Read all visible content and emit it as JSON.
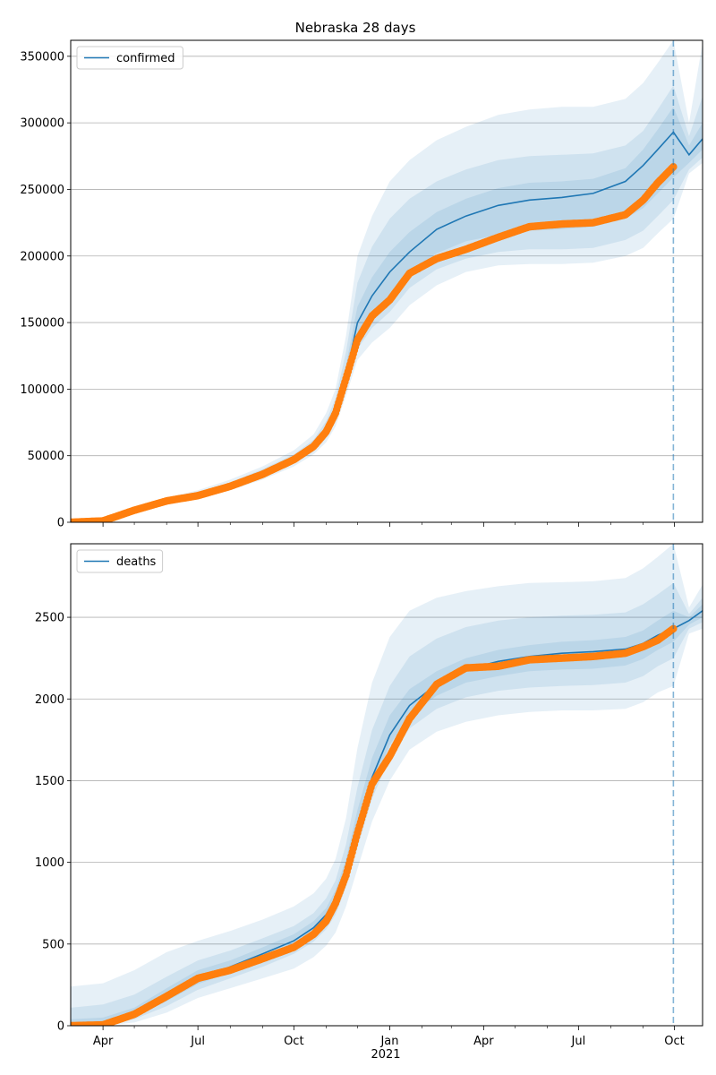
{
  "figure": {
    "title": "Nebraska 28 days"
  },
  "x_axis": {
    "ticks": [
      "Apr",
      "Jul",
      "Oct",
      "Jan",
      "Apr",
      "Jul",
      "Oct"
    ],
    "year_label": "2021"
  },
  "colors": {
    "model": "#1f77b4",
    "observed": "#ff7f0e",
    "band": "#1f77b4",
    "grid": "#b0b0b0",
    "forecast_line": "#1f77b4"
  },
  "chart_data": [
    {
      "type": "line",
      "legend": "confirmed",
      "legend_position": "top-left",
      "grid": "horizontal",
      "xlim": [
        "2020-03-01",
        "2021-10-28"
      ],
      "ylim": [
        0,
        362000
      ],
      "yticks": [
        "0",
        "50000",
        "100000",
        "150000",
        "200000",
        "250000",
        "300000",
        "350000"
      ],
      "forecast_start": "2021-09-30",
      "series": [
        {
          "name": "confirmed",
          "role": "model median",
          "x": [
            "2020-03-01",
            "2020-04-01",
            "2020-05-01",
            "2020-06-01",
            "2020-07-01",
            "2020-08-01",
            "2020-09-01",
            "2020-10-01",
            "2020-10-20",
            "2020-11-01",
            "2020-11-10",
            "2020-11-20",
            "2020-12-01",
            "2020-12-15",
            "2021-01-01",
            "2021-01-20",
            "2021-02-15",
            "2021-03-15",
            "2021-04-15",
            "2021-05-15",
            "2021-06-15",
            "2021-07-15",
            "2021-08-15",
            "2021-09-01",
            "2021-09-15",
            "2021-09-30",
            "2021-10-15",
            "2021-10-28"
          ],
          "y": [
            0,
            1000,
            9000,
            16000,
            20000,
            27000,
            36000,
            47000,
            57000,
            68000,
            82000,
            110000,
            150000,
            170000,
            188000,
            203000,
            220000,
            230000,
            238000,
            242000,
            244000,
            247000,
            256000,
            268000,
            280000,
            293000,
            276000,
            288000
          ]
        },
        {
          "role": "observed",
          "x": [
            "2020-03-01",
            "2020-04-01",
            "2020-05-01",
            "2020-06-01",
            "2020-07-01",
            "2020-08-01",
            "2020-09-01",
            "2020-10-01",
            "2020-10-20",
            "2020-11-01",
            "2020-11-10",
            "2020-11-20",
            "2020-12-01",
            "2020-12-15",
            "2021-01-01",
            "2021-01-20",
            "2021-02-15",
            "2021-03-15",
            "2021-04-15",
            "2021-05-15",
            "2021-06-15",
            "2021-07-15",
            "2021-08-15",
            "2021-09-01",
            "2021-09-15",
            "2021-09-30"
          ],
          "y": [
            0,
            1000,
            9000,
            16000,
            20000,
            27000,
            36000,
            47000,
            57000,
            68000,
            82000,
            108000,
            137000,
            155000,
            167000,
            187000,
            198000,
            205000,
            214000,
            222000,
            224000,
            225000,
            231000,
            242000,
            255000,
            267000
          ]
        }
      ],
      "bands": [
        {
          "name": "outer",
          "lower": [
            0,
            800,
            7500,
            14000,
            17500,
            24000,
            32000,
            42000,
            51000,
            60000,
            72000,
            95000,
            122000,
            135000,
            146000,
            163000,
            178000,
            188000,
            193000,
            194000,
            194000,
            195000,
            200000,
            206000,
            217000,
            228000,
            262000,
            270000
          ],
          "upper": [
            0,
            1300,
            10500,
            18500,
            24000,
            32000,
            42000,
            54000,
            66000,
            82000,
            100000,
            140000,
            200000,
            230000,
            256000,
            272000,
            287000,
            297000,
            306000,
            310000,
            312000,
            312000,
            318000,
            330000,
            345000,
            362000,
            300000,
            360000
          ]
        },
        {
          "name": "middle",
          "lower": [
            0,
            850,
            8000,
            14800,
            18500,
            25000,
            33500,
            44000,
            53000,
            63000,
            76000,
            100000,
            130000,
            146000,
            158000,
            176000,
            190000,
            198000,
            203000,
            205000,
            205000,
            206000,
            212000,
            219000,
            230000,
            242000,
            265000,
            274000
          ],
          "upper": [
            0,
            1200,
            10000,
            17500,
            22500,
            30000,
            40000,
            51000,
            62000,
            76000,
            93000,
            128000,
            180000,
            207000,
            228000,
            243000,
            256000,
            265000,
            272000,
            275000,
            276000,
            277000,
            283000,
            294000,
            310000,
            328000,
            290000,
            320000
          ]
        },
        {
          "name": "inner",
          "lower": [
            0,
            900,
            8500,
            15300,
            19300,
            26000,
            34800,
            45500,
            55000,
            65500,
            79000,
            104000,
            140000,
            158000,
            171000,
            188000,
            202000,
            211000,
            216000,
            219000,
            220000,
            222000,
            228000,
            236000,
            247000,
            259000,
            270000,
            280000
          ],
          "upper": [
            0,
            1100,
            9500,
            16800,
            21200,
            28500,
            37500,
            49000,
            59500,
            71500,
            87000,
            118000,
            162000,
            184000,
            203000,
            218000,
            233000,
            243000,
            251000,
            255000,
            256000,
            258000,
            266000,
            280000,
            295000,
            312000,
            283000,
            300000
          ]
        }
      ]
    },
    {
      "type": "line",
      "legend": "deaths",
      "legend_position": "top-left",
      "grid": "horizontal",
      "xlim": [
        "2020-03-01",
        "2021-10-28"
      ],
      "ylim": [
        0,
        2950
      ],
      "yticks": [
        "0",
        "500",
        "1000",
        "1500",
        "2000",
        "2500"
      ],
      "forecast_start": "2021-09-30",
      "series": [
        {
          "name": "deaths",
          "role": "model median",
          "x": [
            "2020-03-01",
            "2020-04-01",
            "2020-05-01",
            "2020-06-01",
            "2020-07-01",
            "2020-08-01",
            "2020-09-01",
            "2020-10-01",
            "2020-10-20",
            "2020-11-01",
            "2020-11-10",
            "2020-11-20",
            "2020-12-01",
            "2020-12-15",
            "2021-01-01",
            "2021-01-20",
            "2021-02-15",
            "2021-03-15",
            "2021-04-15",
            "2021-05-15",
            "2021-06-15",
            "2021-07-15",
            "2021-08-15",
            "2021-09-01",
            "2021-09-15",
            "2021-09-30",
            "2021-10-15",
            "2021-10-28"
          ],
          "y": [
            0,
            5,
            70,
            180,
            290,
            360,
            440,
            520,
            600,
            680,
            780,
            950,
            1220,
            1520,
            1780,
            1960,
            2090,
            2180,
            2230,
            2260,
            2280,
            2290,
            2305,
            2340,
            2390,
            2430,
            2480,
            2540
          ]
        },
        {
          "role": "observed",
          "x": [
            "2020-03-01",
            "2020-04-01",
            "2020-05-01",
            "2020-06-01",
            "2020-07-01",
            "2020-08-01",
            "2020-09-01",
            "2020-10-01",
            "2020-10-20",
            "2020-11-01",
            "2020-11-10",
            "2020-11-20",
            "2020-12-01",
            "2020-12-15",
            "2021-01-01",
            "2021-01-20",
            "2021-02-15",
            "2021-03-15",
            "2021-04-15",
            "2021-05-15",
            "2021-06-15",
            "2021-07-15",
            "2021-08-15",
            "2021-09-01",
            "2021-09-15",
            "2021-09-30"
          ],
          "y": [
            0,
            5,
            70,
            180,
            290,
            340,
            410,
            480,
            560,
            640,
            750,
            920,
            1180,
            1480,
            1650,
            1880,
            2090,
            2190,
            2200,
            2240,
            2250,
            2260,
            2280,
            2320,
            2360,
            2430
          ]
        }
      ],
      "bands": [
        {
          "name": "outer",
          "lower": [
            0,
            0,
            20,
            80,
            170,
            230,
            290,
            350,
            420,
            490,
            570,
            730,
            960,
            1250,
            1500,
            1690,
            1800,
            1860,
            1900,
            1920,
            1930,
            1930,
            1940,
            1980,
            2040,
            2080,
            2400,
            2430
          ],
          "upper": [
            240,
            260,
            340,
            450,
            520,
            580,
            650,
            730,
            810,
            900,
            1020,
            1270,
            1700,
            2100,
            2380,
            2540,
            2620,
            2660,
            2690,
            2710,
            2715,
            2720,
            2740,
            2800,
            2870,
            2950,
            2560,
            2700
          ]
        },
        {
          "name": "middle",
          "lower": [
            0,
            0,
            40,
            120,
            220,
            290,
            360,
            440,
            515,
            590,
            680,
            850,
            1090,
            1390,
            1640,
            1820,
            1940,
            2010,
            2050,
            2070,
            2080,
            2085,
            2100,
            2140,
            2200,
            2250,
            2430,
            2470
          ],
          "upper": [
            110,
            130,
            190,
            300,
            400,
            460,
            535,
            610,
            690,
            780,
            890,
            1110,
            1460,
            1810,
            2080,
            2260,
            2370,
            2440,
            2480,
            2500,
            2510,
            2515,
            2530,
            2580,
            2640,
            2710,
            2520,
            2620
          ]
        },
        {
          "name": "inner",
          "lower": [
            0,
            2,
            55,
            150,
            255,
            325,
            400,
            480,
            560,
            640,
            735,
            905,
            1160,
            1460,
            1720,
            1900,
            2020,
            2100,
            2140,
            2170,
            2180,
            2185,
            2205,
            2245,
            2300,
            2350,
            2455,
            2500
          ],
          "upper": [
            40,
            50,
            110,
            230,
            340,
            400,
            480,
            560,
            640,
            720,
            830,
            1020,
            1320,
            1640,
            1900,
            2060,
            2170,
            2250,
            2300,
            2330,
            2350,
            2360,
            2380,
            2420,
            2480,
            2540,
            2500,
            2580
          ]
        }
      ]
    }
  ]
}
